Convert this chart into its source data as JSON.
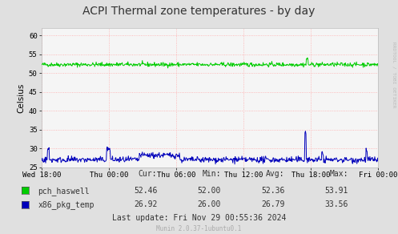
{
  "title": "ACPI Thermal zone temperatures - by day",
  "ylabel": "Celsius",
  "background_color": "#e0e0e0",
  "plot_bg_color": "#f5f5f5",
  "ylim": [
    25,
    62
  ],
  "yticks": [
    25,
    30,
    35,
    40,
    45,
    50,
    55,
    60
  ],
  "xtick_labels": [
    "Wed 18:00",
    "Thu 00:00",
    "Thu 06:00",
    "Thu 12:00",
    "Thu 18:00",
    "Fri 00:00"
  ],
  "grid_color": "#ffaaaa",
  "series1_color": "#00cc00",
  "series1_label": "pch_haswell",
  "series1_base": 52.3,
  "series1_noise": 0.28,
  "series2_color": "#0000bb",
  "series2_label": "x86_pkg_temp",
  "series2_base": 27.0,
  "series2_noise": 0.4,
  "n_points": 700,
  "cur1": "52.46",
  "min1": "52.00",
  "avg1": "52.36",
  "max1": "53.91",
  "cur2": "26.92",
  "min2": "26.00",
  "avg2": "26.79",
  "max2": "33.56",
  "footer": "Last update: Fri Nov 29 00:55:36 2024",
  "munin_version": "Munin 2.0.37-1ubuntu0.1",
  "watermark": "RRDTOOL / TOBI OETIKER",
  "legend_colors": [
    "#00cc00",
    "#0000bb"
  ],
  "legend_labels": [
    "pch_haswell",
    "x86_pkg_temp"
  ]
}
